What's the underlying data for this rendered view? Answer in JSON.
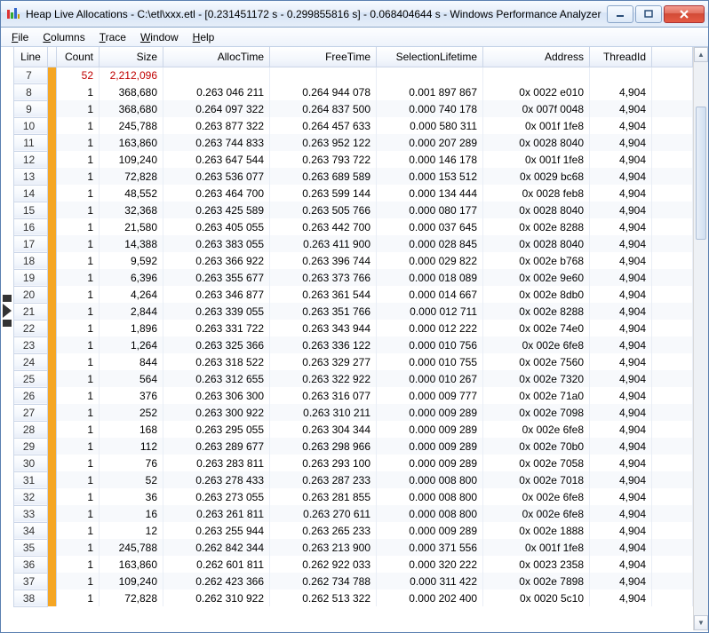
{
  "window": {
    "title": "Heap Live Allocations - C:\\etl\\xxx.etl - [0.231451172 s - 0.299855816 s] - 0.068404644 s - Windows Performance Analyzer"
  },
  "menu": {
    "items": [
      {
        "label": "File",
        "u": "F"
      },
      {
        "label": "Columns",
        "u": "C"
      },
      {
        "label": "Trace",
        "u": "T"
      },
      {
        "label": "Window",
        "u": "W"
      },
      {
        "label": "Help",
        "u": "H"
      }
    ]
  },
  "columns": [
    "Line",
    "",
    "Count",
    "Size",
    "AllocTime",
    "FreeTime",
    "SelectionLifetime",
    "Address",
    "ThreadId",
    ""
  ],
  "summary": {
    "line": "7",
    "count": "52",
    "size": "2,212,096",
    "alloc": "",
    "free": "",
    "sel": "",
    "addr": "",
    "tid": ""
  },
  "rows": [
    {
      "line": "8",
      "count": "1",
      "size": "368,680",
      "alloc": "0.263 046 211",
      "free": "0.264 944 078",
      "sel": "0.001 897 867",
      "addr": "0x 0022 e010",
      "tid": "4,904"
    },
    {
      "line": "9",
      "count": "1",
      "size": "368,680",
      "alloc": "0.264 097 322",
      "free": "0.264 837 500",
      "sel": "0.000 740 178",
      "addr": "0x 007f 0048",
      "tid": "4,904"
    },
    {
      "line": "10",
      "count": "1",
      "size": "245,788",
      "alloc": "0.263 877 322",
      "free": "0.264 457 633",
      "sel": "0.000 580 311",
      "addr": "0x 001f 1fe8",
      "tid": "4,904"
    },
    {
      "line": "11",
      "count": "1",
      "size": "163,860",
      "alloc": "0.263 744 833",
      "free": "0.263 952 122",
      "sel": "0.000 207 289",
      "addr": "0x 0028 8040",
      "tid": "4,904"
    },
    {
      "line": "12",
      "count": "1",
      "size": "109,240",
      "alloc": "0.263 647 544",
      "free": "0.263 793 722",
      "sel": "0.000 146 178",
      "addr": "0x 001f 1fe8",
      "tid": "4,904"
    },
    {
      "line": "13",
      "count": "1",
      "size": "72,828",
      "alloc": "0.263 536 077",
      "free": "0.263 689 589",
      "sel": "0.000 153 512",
      "addr": "0x 0029 bc68",
      "tid": "4,904"
    },
    {
      "line": "14",
      "count": "1",
      "size": "48,552",
      "alloc": "0.263 464 700",
      "free": "0.263 599 144",
      "sel": "0.000 134 444",
      "addr": "0x 0028 feb8",
      "tid": "4,904"
    },
    {
      "line": "15",
      "count": "1",
      "size": "32,368",
      "alloc": "0.263 425 589",
      "free": "0.263 505 766",
      "sel": "0.000 080 177",
      "addr": "0x 0028 8040",
      "tid": "4,904"
    },
    {
      "line": "16",
      "count": "1",
      "size": "21,580",
      "alloc": "0.263 405 055",
      "free": "0.263 442 700",
      "sel": "0.000 037 645",
      "addr": "0x 002e 8288",
      "tid": "4,904"
    },
    {
      "line": "17",
      "count": "1",
      "size": "14,388",
      "alloc": "0.263 383 055",
      "free": "0.263 411 900",
      "sel": "0.000 028 845",
      "addr": "0x 0028 8040",
      "tid": "4,904"
    },
    {
      "line": "18",
      "count": "1",
      "size": "9,592",
      "alloc": "0.263 366 922",
      "free": "0.263 396 744",
      "sel": "0.000 029 822",
      "addr": "0x 002e b768",
      "tid": "4,904"
    },
    {
      "line": "19",
      "count": "1",
      "size": "6,396",
      "alloc": "0.263 355 677",
      "free": "0.263 373 766",
      "sel": "0.000 018 089",
      "addr": "0x 002e 9e60",
      "tid": "4,904"
    },
    {
      "line": "20",
      "count": "1",
      "size": "4,264",
      "alloc": "0.263 346 877",
      "free": "0.263 361 544",
      "sel": "0.000 014 667",
      "addr": "0x 002e 8db0",
      "tid": "4,904"
    },
    {
      "line": "21",
      "count": "1",
      "size": "2,844",
      "alloc": "0.263 339 055",
      "free": "0.263 351 766",
      "sel": "0.000 012 711",
      "addr": "0x 002e 8288",
      "tid": "4,904"
    },
    {
      "line": "22",
      "count": "1",
      "size": "1,896",
      "alloc": "0.263 331 722",
      "free": "0.263 343 944",
      "sel": "0.000 012 222",
      "addr": "0x 002e 74e0",
      "tid": "4,904"
    },
    {
      "line": "23",
      "count": "1",
      "size": "1,264",
      "alloc": "0.263 325 366",
      "free": "0.263 336 122",
      "sel": "0.000 010 756",
      "addr": "0x 002e 6fe8",
      "tid": "4,904"
    },
    {
      "line": "24",
      "count": "1",
      "size": "844",
      "alloc": "0.263 318 522",
      "free": "0.263 329 277",
      "sel": "0.000 010 755",
      "addr": "0x 002e 7560",
      "tid": "4,904"
    },
    {
      "line": "25",
      "count": "1",
      "size": "564",
      "alloc": "0.263 312 655",
      "free": "0.263 322 922",
      "sel": "0.000 010 267",
      "addr": "0x 002e 7320",
      "tid": "4,904"
    },
    {
      "line": "26",
      "count": "1",
      "size": "376",
      "alloc": "0.263 306 300",
      "free": "0.263 316 077",
      "sel": "0.000 009 777",
      "addr": "0x 002e 71a0",
      "tid": "4,904"
    },
    {
      "line": "27",
      "count": "1",
      "size": "252",
      "alloc": "0.263 300 922",
      "free": "0.263 310 211",
      "sel": "0.000 009 289",
      "addr": "0x 002e 7098",
      "tid": "4,904"
    },
    {
      "line": "28",
      "count": "1",
      "size": "168",
      "alloc": "0.263 295 055",
      "free": "0.263 304 344",
      "sel": "0.000 009 289",
      "addr": "0x 002e 6fe8",
      "tid": "4,904"
    },
    {
      "line": "29",
      "count": "1",
      "size": "112",
      "alloc": "0.263 289 677",
      "free": "0.263 298 966",
      "sel": "0.000 009 289",
      "addr": "0x 002e 70b0",
      "tid": "4,904"
    },
    {
      "line": "30",
      "count": "1",
      "size": "76",
      "alloc": "0.263 283 811",
      "free": "0.263 293 100",
      "sel": "0.000 009 289",
      "addr": "0x 002e 7058",
      "tid": "4,904"
    },
    {
      "line": "31",
      "count": "1",
      "size": "52",
      "alloc": "0.263 278 433",
      "free": "0.263 287 233",
      "sel": "0.000 008 800",
      "addr": "0x 002e 7018",
      "tid": "4,904"
    },
    {
      "line": "32",
      "count": "1",
      "size": "36",
      "alloc": "0.263 273 055",
      "free": "0.263 281 855",
      "sel": "0.000 008 800",
      "addr": "0x 002e 6fe8",
      "tid": "4,904"
    },
    {
      "line": "33",
      "count": "1",
      "size": "16",
      "alloc": "0.263 261 811",
      "free": "0.263 270 611",
      "sel": "0.000 008 800",
      "addr": "0x 002e 6fe8",
      "tid": "4,904"
    },
    {
      "line": "34",
      "count": "1",
      "size": "12",
      "alloc": "0.263 255 944",
      "free": "0.263 265 233",
      "sel": "0.000 009 289",
      "addr": "0x 002e 1888",
      "tid": "4,904"
    },
    {
      "line": "35",
      "count": "1",
      "size": "245,788",
      "alloc": "0.262 842 344",
      "free": "0.263 213 900",
      "sel": "0.000 371 556",
      "addr": "0x 001f 1fe8",
      "tid": "4,904"
    },
    {
      "line": "36",
      "count": "1",
      "size": "163,860",
      "alloc": "0.262 601 811",
      "free": "0.262 922 033",
      "sel": "0.000 320 222",
      "addr": "0x 0023 2358",
      "tid": "4,904"
    },
    {
      "line": "37",
      "count": "1",
      "size": "109,240",
      "alloc": "0.262 423 366",
      "free": "0.262 734 788",
      "sel": "0.000 311 422",
      "addr": "0x 002e 7898",
      "tid": "4,904"
    },
    {
      "line": "38",
      "count": "1",
      "size": "72,828",
      "alloc": "0.262 310 922",
      "free": "0.262 513 322",
      "sel": "0.000 202 400",
      "addr": "0x 0020 5c10",
      "tid": "4,904"
    }
  ],
  "marker_row_index": 14
}
